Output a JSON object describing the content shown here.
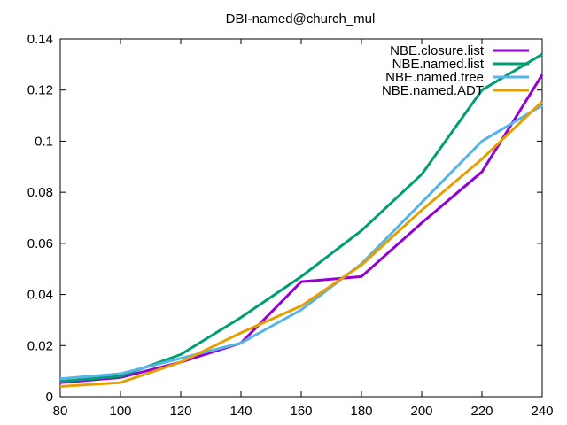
{
  "chart_data": {
    "type": "line",
    "title": "DBI-named@church_mul",
    "xlabel": "",
    "ylabel": "",
    "xlim": [
      80,
      240
    ],
    "ylim": [
      0,
      0.14
    ],
    "grid": false,
    "legend_position": "top-right",
    "x": [
      80,
      100,
      120,
      140,
      160,
      180,
      200,
      220,
      240
    ],
    "x_ticks": [
      "80",
      "100",
      "120",
      "140",
      "160",
      "180",
      "200",
      "220",
      "240"
    ],
    "y_ticks": [
      "0",
      "0.02",
      "0.04",
      "0.06",
      "0.08",
      "0.1",
      "0.12",
      "0.14"
    ],
    "series": [
      {
        "name": "NBE.closure.list",
        "color": "#9400d3",
        "values": [
          0.0055,
          0.0075,
          0.0135,
          0.021,
          0.045,
          0.047,
          0.068,
          0.088,
          0.126
        ]
      },
      {
        "name": "NBE.named.list",
        "color": "#009e73",
        "values": [
          0.006,
          0.008,
          0.0165,
          0.031,
          0.047,
          0.065,
          0.087,
          0.12,
          0.134
        ]
      },
      {
        "name": "NBE.named.tree",
        "color": "#56b4e9",
        "values": [
          0.007,
          0.009,
          0.015,
          0.021,
          0.034,
          0.052,
          0.076,
          0.1,
          0.114
        ]
      },
      {
        "name": "NBE.named.ADT",
        "color": "#e69f00",
        "values": [
          0.004,
          0.0055,
          0.0135,
          0.025,
          0.0355,
          0.0515,
          0.073,
          0.093,
          0.1155
        ]
      }
    ]
  }
}
